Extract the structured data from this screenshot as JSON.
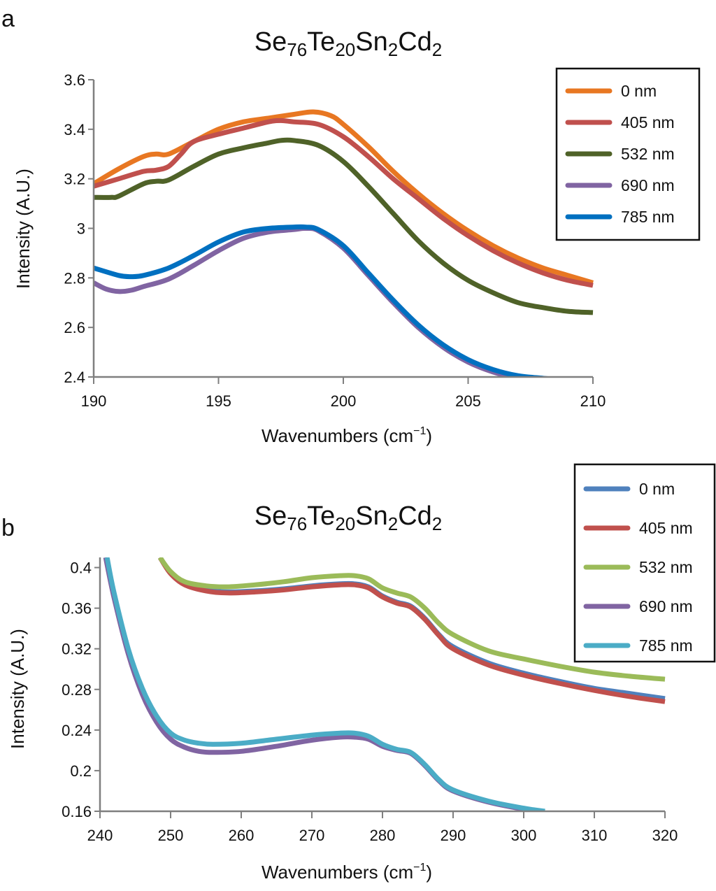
{
  "figure": {
    "panels": [
      {
        "letter": "a",
        "title": {
          "parts": [
            [
              "Se",
              ""
            ],
            [
              "76",
              "sub"
            ],
            [
              "Te",
              ""
            ],
            [
              "20",
              "sub"
            ],
            [
              "Sn",
              ""
            ],
            [
              "2",
              "sub"
            ],
            [
              "Cd",
              ""
            ],
            [
              "2",
              "sub"
            ]
          ]
        }
      },
      {
        "letter": "b",
        "title": {
          "parts": [
            [
              "Se",
              ""
            ],
            [
              "76",
              "sub"
            ],
            [
              "Te",
              ""
            ],
            [
              "20",
              "sub"
            ],
            [
              "Sn",
              ""
            ],
            [
              "2",
              "sub"
            ],
            [
              "Cd",
              ""
            ],
            [
              "2",
              "sub"
            ]
          ]
        }
      }
    ]
  },
  "chart_data": [
    {
      "type": "line",
      "panel": "a",
      "title": "Se76Te20Sn2Cd2",
      "xlabel": "Wavenumbers (cm−1)",
      "ylabel": "Intensity (A.U.)",
      "xlim": [
        190,
        210
      ],
      "ylim": [
        2.4,
        3.6
      ],
      "xticks": [
        190,
        195,
        200,
        205,
        210
      ],
      "xtick_labels": [
        "190",
        "195",
        "200",
        "205",
        "210"
      ],
      "yticks": [
        2.4,
        2.6,
        2.8,
        3.0,
        3.2,
        3.4,
        3.6
      ],
      "ytick_labels": [
        "2.4",
        "2.6",
        "2.8",
        "3",
        "3.2",
        "3.4",
        "3.6"
      ],
      "grid": false,
      "legend_position": "top-right",
      "series": [
        {
          "name": "0 nm",
          "color": "#E87722",
          "x": [
            190,
            191,
            192,
            192.5,
            193,
            194,
            195,
            196,
            197,
            198,
            198.8,
            199.5,
            200,
            201,
            202,
            203,
            204,
            205,
            206,
            207,
            208,
            209,
            210
          ],
          "y": [
            3.18,
            3.24,
            3.29,
            3.3,
            3.3,
            3.35,
            3.4,
            3.43,
            3.445,
            3.46,
            3.47,
            3.455,
            3.42,
            3.33,
            3.23,
            3.14,
            3.06,
            2.99,
            2.93,
            2.88,
            2.84,
            2.81,
            2.78
          ]
        },
        {
          "name": "405 nm",
          "color": "#C0504D",
          "x": [
            190,
            191,
            192,
            192.5,
            193,
            193.5,
            194,
            195,
            196,
            197,
            197.5,
            198,
            199,
            200,
            201,
            202,
            203,
            204,
            205,
            206,
            207,
            208,
            209,
            210
          ],
          "y": [
            3.17,
            3.2,
            3.23,
            3.235,
            3.25,
            3.3,
            3.35,
            3.38,
            3.405,
            3.43,
            3.435,
            3.43,
            3.42,
            3.37,
            3.29,
            3.2,
            3.12,
            3.04,
            2.97,
            2.91,
            2.86,
            2.82,
            2.79,
            2.77
          ]
        },
        {
          "name": "532 nm",
          "color": "#4F6228",
          "x": [
            190,
            190.7,
            191,
            192,
            192.5,
            193,
            194,
            195,
            196,
            197,
            197.5,
            198,
            199,
            200,
            201,
            202,
            203,
            204,
            205,
            206,
            207,
            208,
            209,
            210
          ],
          "y": [
            3.125,
            3.125,
            3.13,
            3.18,
            3.19,
            3.195,
            3.25,
            3.3,
            3.325,
            3.345,
            3.355,
            3.355,
            3.335,
            3.27,
            3.17,
            3.06,
            2.95,
            2.86,
            2.79,
            2.74,
            2.7,
            2.68,
            2.665,
            2.66
          ]
        },
        {
          "name": "690 nm",
          "color": "#8064A2",
          "x": [
            190,
            190.5,
            191,
            191.5,
            192,
            193,
            194,
            195,
            196,
            197,
            198,
            198.5,
            199,
            200,
            201,
            202,
            203,
            204,
            205,
            206,
            207,
            208
          ],
          "y": [
            2.78,
            2.755,
            2.745,
            2.75,
            2.765,
            2.795,
            2.85,
            2.91,
            2.96,
            2.985,
            2.995,
            3.0,
            2.99,
            2.92,
            2.81,
            2.7,
            2.6,
            2.52,
            2.46,
            2.42,
            2.395,
            2.38
          ]
        },
        {
          "name": "785 nm",
          "color": "#0070C0",
          "x": [
            190,
            191,
            191.5,
            192,
            193,
            194,
            195,
            196,
            197,
            198,
            198.5,
            199,
            200,
            201,
            202,
            203,
            204,
            205,
            206,
            207,
            208,
            208.5
          ],
          "y": [
            2.84,
            2.81,
            2.805,
            2.81,
            2.84,
            2.89,
            2.945,
            2.985,
            3.0,
            3.005,
            3.005,
            2.995,
            2.93,
            2.82,
            2.71,
            2.61,
            2.53,
            2.47,
            2.43,
            2.405,
            2.395,
            2.39
          ]
        }
      ]
    },
    {
      "type": "line",
      "panel": "b",
      "title": "Se76Te20Sn2Cd2",
      "xlabel": "Wavenumbers (cm−1)",
      "ylabel": "Intensity (A.U.)",
      "xlim": [
        240,
        320
      ],
      "ylim": [
        0.16,
        0.41
      ],
      "xticks": [
        240,
        250,
        260,
        270,
        280,
        290,
        300,
        310,
        320
      ],
      "xtick_labels": [
        "240",
        "250",
        "260",
        "270",
        "280",
        "290",
        "300",
        "310",
        "320"
      ],
      "yticks": [
        0.16,
        0.2,
        0.24,
        0.28,
        0.32,
        0.36,
        0.4
      ],
      "ytick_labels": [
        "0.16",
        "0.2",
        "0.24",
        "0.28",
        "0.32",
        "0.36",
        "0.4"
      ],
      "grid": false,
      "legend_position": "top-right (outside)",
      "series": [
        {
          "name": "0 nm",
          "color": "#4F81BD",
          "x": [
            248.5,
            250,
            252,
            255,
            258,
            262,
            266,
            270,
            274,
            276,
            278,
            280,
            282,
            284,
            286,
            288,
            290,
            295,
            300,
            305,
            310,
            315,
            320
          ],
          "y": [
            0.41,
            0.395,
            0.384,
            0.378,
            0.376,
            0.377,
            0.379,
            0.382,
            0.384,
            0.384,
            0.381,
            0.372,
            0.366,
            0.362,
            0.35,
            0.334,
            0.322,
            0.306,
            0.296,
            0.288,
            0.281,
            0.276,
            0.271
          ]
        },
        {
          "name": "405 nm",
          "color": "#C0504D",
          "x": [
            248.5,
            250,
            252,
            255,
            258,
            262,
            266,
            270,
            274,
            276,
            278,
            280,
            282,
            284,
            286,
            288,
            290,
            295,
            300,
            305,
            310,
            315,
            320
          ],
          "y": [
            0.41,
            0.394,
            0.383,
            0.377,
            0.375,
            0.376,
            0.378,
            0.381,
            0.383,
            0.383,
            0.38,
            0.371,
            0.365,
            0.361,
            0.349,
            0.333,
            0.32,
            0.304,
            0.294,
            0.286,
            0.279,
            0.273,
            0.268
          ]
        },
        {
          "name": "532 nm",
          "color": "#9BBB59",
          "x": [
            248.5,
            250,
            252,
            255,
            258,
            262,
            266,
            270,
            274,
            276,
            278,
            280,
            282,
            284,
            286,
            288,
            290,
            295,
            300,
            305,
            310,
            315,
            320
          ],
          "y": [
            0.41,
            0.396,
            0.386,
            0.382,
            0.381,
            0.383,
            0.386,
            0.39,
            0.392,
            0.392,
            0.389,
            0.38,
            0.375,
            0.371,
            0.36,
            0.345,
            0.334,
            0.318,
            0.31,
            0.303,
            0.297,
            0.293,
            0.29
          ]
        },
        {
          "name": "690 nm",
          "color": "#8064A2",
          "x": [
            240.8,
            242,
            244,
            246,
            248,
            250,
            252,
            254,
            256,
            260,
            265,
            270,
            274,
            276,
            278,
            280,
            282,
            284,
            286,
            288,
            290,
            295,
            300,
            302
          ],
          "y": [
            0.41,
            0.37,
            0.315,
            0.275,
            0.248,
            0.231,
            0.223,
            0.219,
            0.218,
            0.219,
            0.224,
            0.23,
            0.233,
            0.233,
            0.231,
            0.224,
            0.22,
            0.217,
            0.205,
            0.19,
            0.18,
            0.169,
            0.162,
            0.16
          ]
        },
        {
          "name": "785 nm",
          "color": "#4BACC6",
          "x": [
            241,
            242,
            244,
            246,
            248,
            250,
            252,
            254,
            256,
            260,
            265,
            270,
            274,
            276,
            278,
            280,
            282,
            284,
            286,
            288,
            290,
            295,
            300,
            303
          ],
          "y": [
            0.41,
            0.375,
            0.32,
            0.281,
            0.254,
            0.237,
            0.23,
            0.227,
            0.226,
            0.227,
            0.231,
            0.235,
            0.237,
            0.237,
            0.234,
            0.226,
            0.221,
            0.218,
            0.206,
            0.191,
            0.181,
            0.17,
            0.163,
            0.16
          ]
        }
      ]
    }
  ]
}
